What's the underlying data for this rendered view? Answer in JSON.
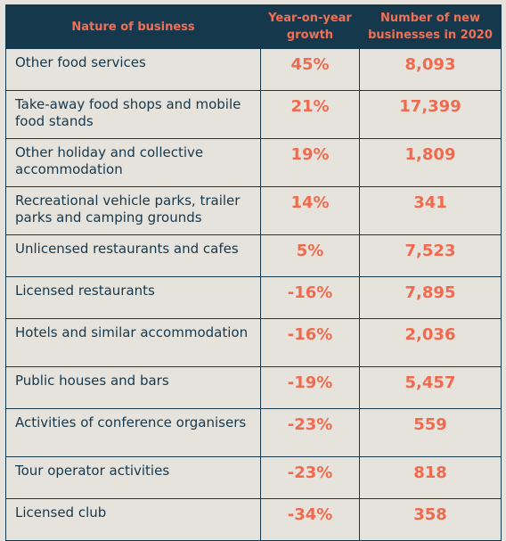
{
  "table": {
    "headers": [
      "Nature of business",
      "Year-on-year growth",
      "Number of new businesses in 2020"
    ],
    "rows": [
      {
        "name": "Other food services",
        "growth": "45%",
        "count": "8,093",
        "lines": 1
      },
      {
        "name": "Take-away food shops and mobile food stands",
        "growth": "21%",
        "count": "17,399",
        "lines": 2
      },
      {
        "name": "Other holiday and collective accommodation",
        "growth": "19%",
        "count": "1,809",
        "lines": 2
      },
      {
        "name": "Recreational vehicle parks, trailer parks and camping grounds",
        "growth": "14%",
        "count": "341",
        "lines": 2
      },
      {
        "name": "Unlicensed restaurants and cafes",
        "growth": "5%",
        "count": "7,523",
        "lines": 1
      },
      {
        "name": "Licensed restaurants",
        "growth": "-16%",
        "count": "7,895",
        "lines": 1
      },
      {
        "name": "Hotels and similar accommodation",
        "growth": "-16%",
        "count": "2,036",
        "lines": 2
      },
      {
        "name": "Public houses and bars",
        "growth": "-19%",
        "count": "5,457",
        "lines": 1
      },
      {
        "name": "Activities of conference organisers",
        "growth": "-23%",
        "count": "559",
        "lines": 2
      },
      {
        "name": "Tour operator activities",
        "growth": "-23%",
        "count": "818",
        "lines": 1
      },
      {
        "name": "Licensed club",
        "growth": "-34%",
        "count": "358",
        "lines": 1
      }
    ]
  }
}
